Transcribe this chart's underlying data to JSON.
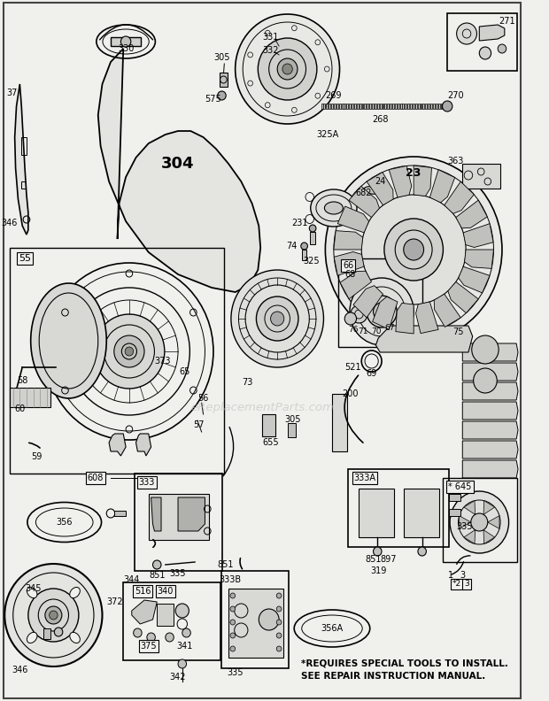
{
  "bg_color": "#f0f0ec",
  "watermark": "eReplacementParts.com",
  "footnote1": "*REQUIRES SPECIAL TOOLS TO INSTALL.",
  "footnote2": "SEE REPAIR INSTRUCTION MANUAL."
}
